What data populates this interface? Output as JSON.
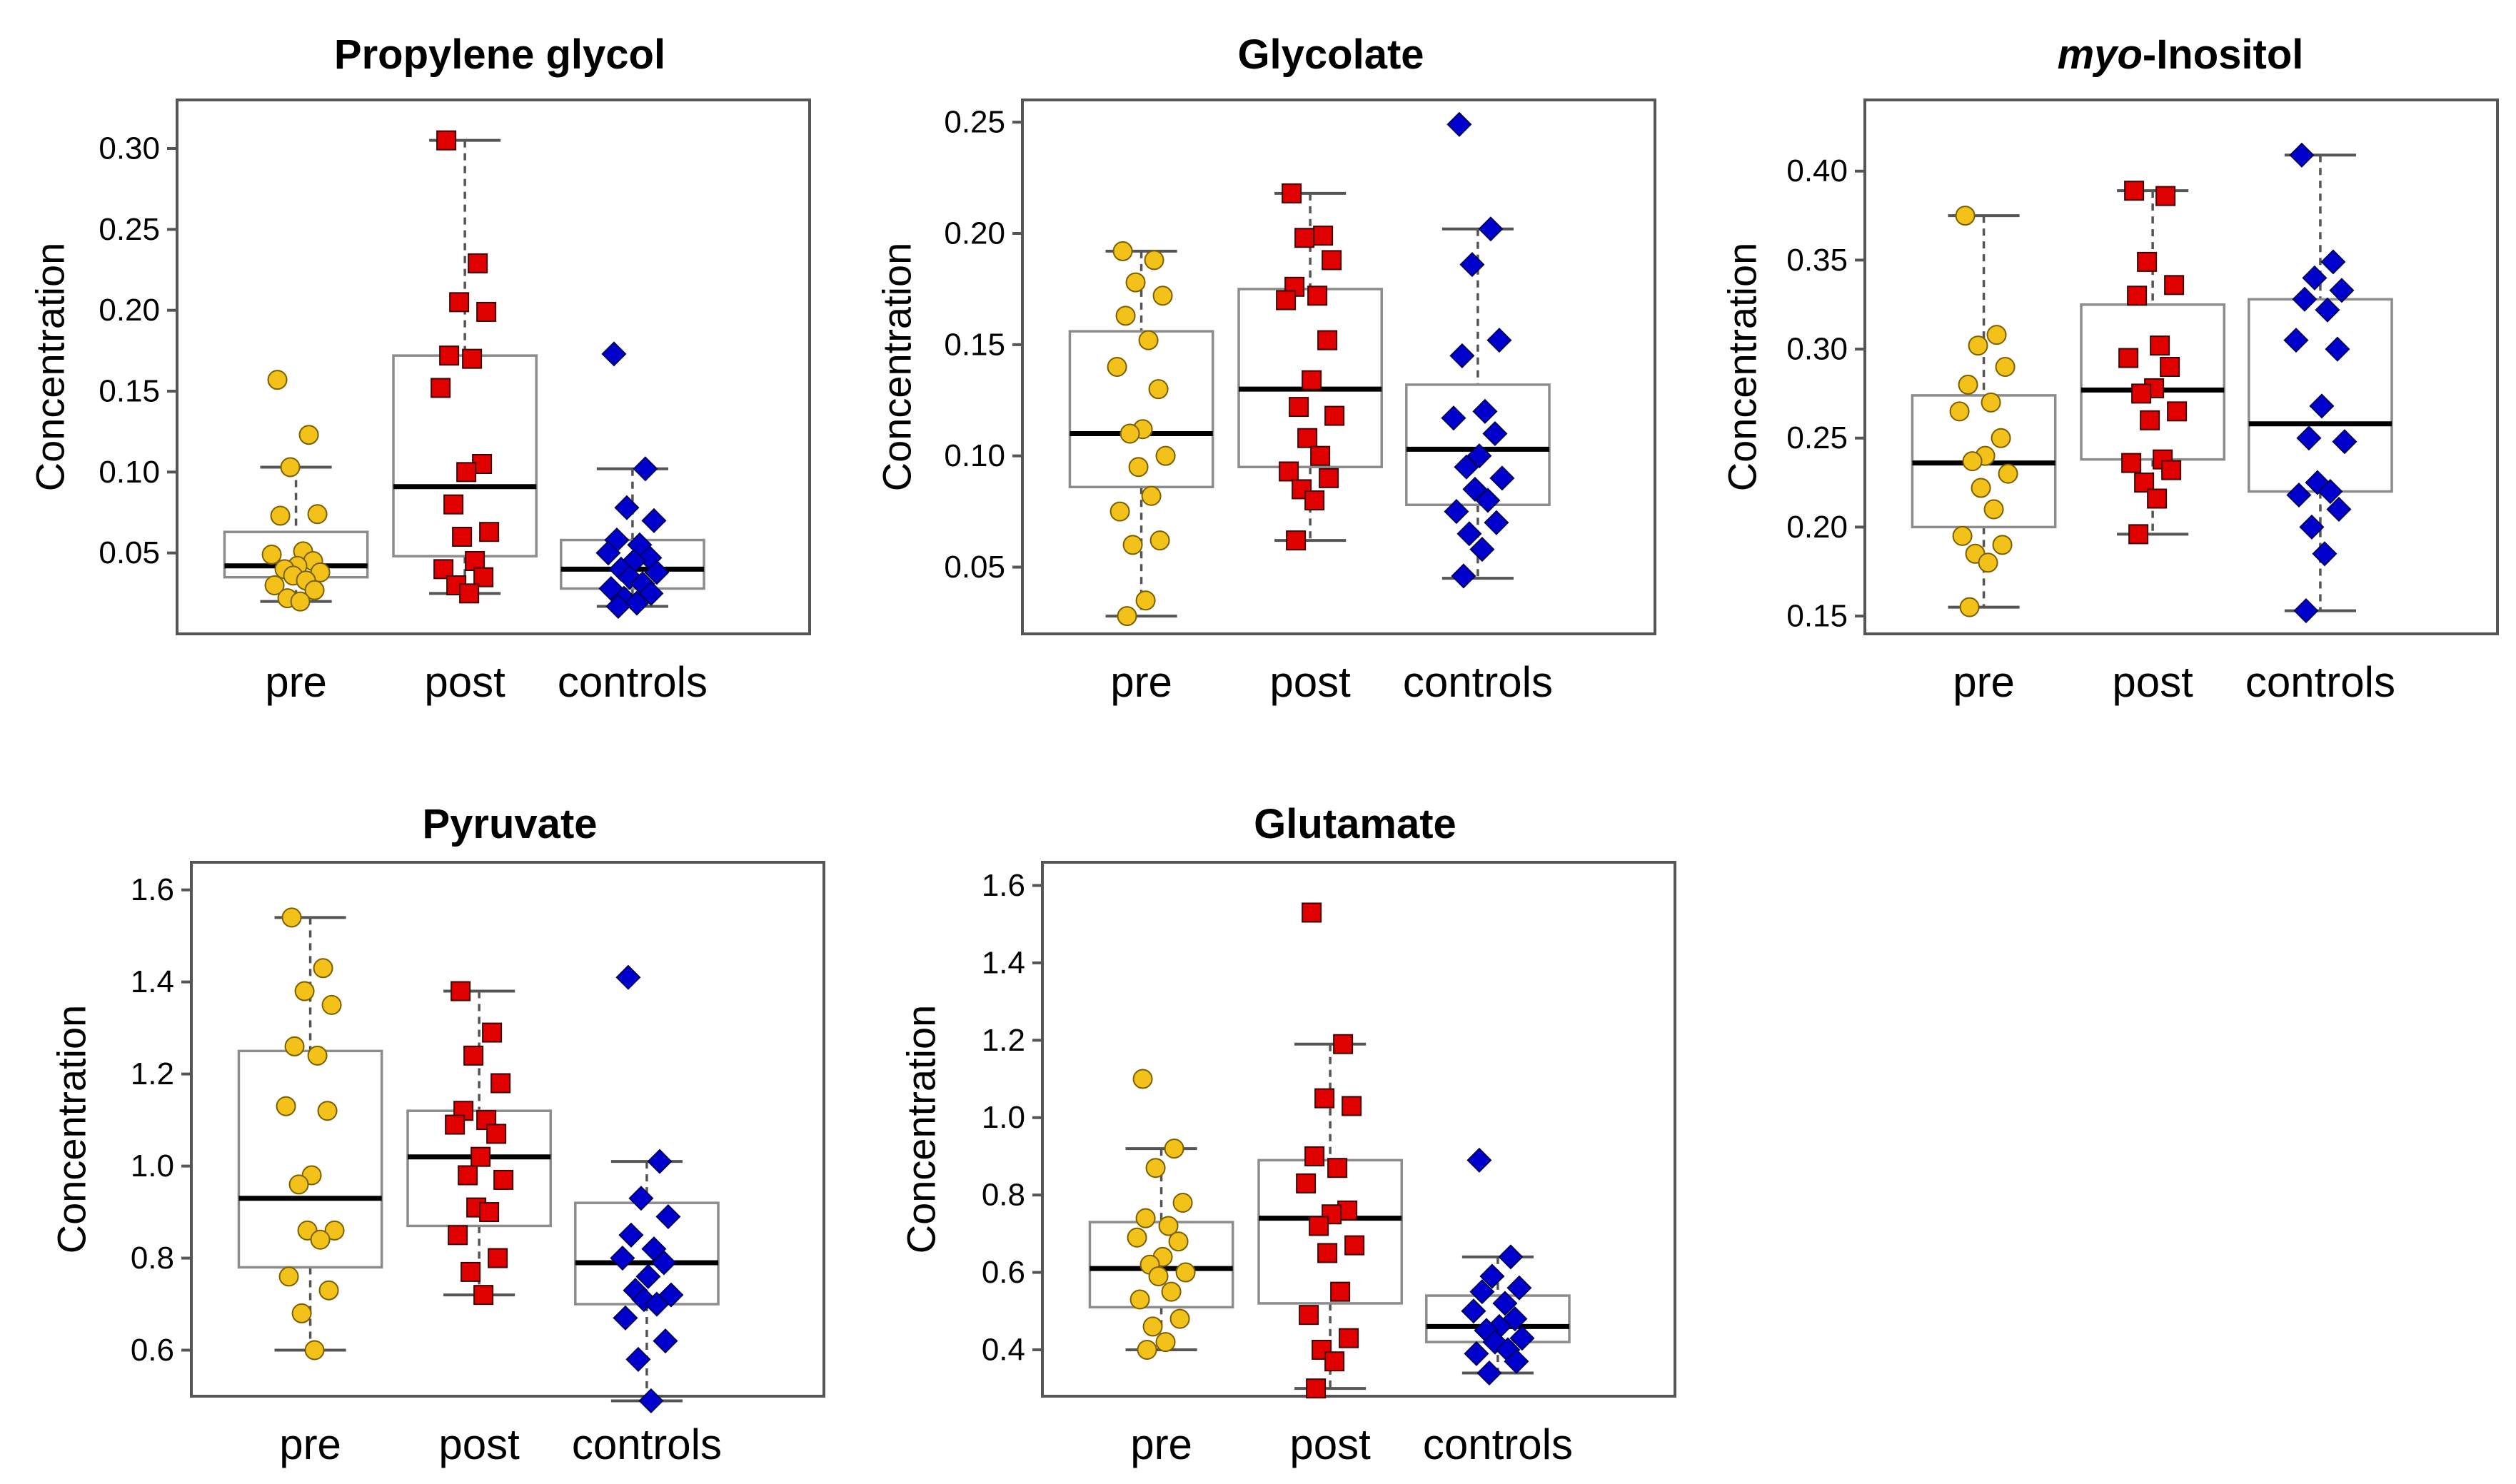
{
  "colors": {
    "pre": "#f2c21b",
    "post": "#e00000",
    "controls": "#0000cc"
  },
  "chart_data": [
    {
      "type": "box",
      "title": "Propylene glycol",
      "ylabel": "Concentration",
      "categories": [
        "pre",
        "post",
        "controls"
      ],
      "ylim": [
        0.0,
        0.33
      ],
      "yticks": [
        0.05,
        0.1,
        0.15,
        0.2,
        0.25,
        0.3
      ],
      "series": [
        {
          "box": {
            "whislo": 0.02,
            "q1": 0.035,
            "med": 0.042,
            "q3": 0.063,
            "whishi": 0.103
          },
          "points": [
            0.157,
            0.123,
            0.103,
            0.074,
            0.073,
            0.051,
            0.049,
            0.045,
            0.042,
            0.04,
            0.038,
            0.036,
            0.033,
            0.03,
            0.027,
            0.022,
            0.02
          ]
        },
        {
          "box": {
            "whislo": 0.025,
            "q1": 0.048,
            "med": 0.091,
            "q3": 0.172,
            "whishi": 0.305
          },
          "points": [
            0.305,
            0.229,
            0.205,
            0.199,
            0.172,
            0.17,
            0.152,
            0.105,
            0.1,
            0.08,
            0.063,
            0.06,
            0.045,
            0.04,
            0.035,
            0.03,
            0.025
          ]
        },
        {
          "box": {
            "whislo": 0.017,
            "q1": 0.028,
            "med": 0.04,
            "q3": 0.058,
            "whishi": 0.102
          },
          "points": [
            0.173,
            0.102,
            0.078,
            0.07,
            0.058,
            0.055,
            0.05,
            0.047,
            0.045,
            0.04,
            0.038,
            0.035,
            0.031,
            0.028,
            0.025,
            0.022,
            0.019,
            0.017
          ]
        }
      ]
    },
    {
      "type": "box",
      "title": "Glycolate",
      "ylabel": "Concentration",
      "categories": [
        "pre",
        "post",
        "controls"
      ],
      "ylim": [
        0.02,
        0.26
      ],
      "yticks": [
        0.05,
        0.1,
        0.15,
        0.2,
        0.25
      ],
      "series": [
        {
          "box": {
            "whislo": 0.028,
            "q1": 0.086,
            "med": 0.11,
            "q3": 0.156,
            "whishi": 0.192
          },
          "points": [
            0.192,
            0.188,
            0.178,
            0.172,
            0.163,
            0.152,
            0.14,
            0.13,
            0.112,
            0.11,
            0.1,
            0.095,
            0.082,
            0.075,
            0.062,
            0.06,
            0.035,
            0.028
          ]
        },
        {
          "box": {
            "whislo": 0.062,
            "q1": 0.095,
            "med": 0.13,
            "q3": 0.175,
            "whishi": 0.218
          },
          "points": [
            0.218,
            0.199,
            0.198,
            0.188,
            0.176,
            0.172,
            0.17,
            0.152,
            0.134,
            0.122,
            0.118,
            0.108,
            0.1,
            0.093,
            0.09,
            0.085,
            0.08,
            0.062
          ]
        },
        {
          "box": {
            "whislo": 0.045,
            "q1": 0.078,
            "med": 0.103,
            "q3": 0.132,
            "whishi": 0.202
          },
          "points": [
            0.249,
            0.202,
            0.186,
            0.152,
            0.145,
            0.12,
            0.117,
            0.11,
            0.1,
            0.095,
            0.09,
            0.085,
            0.08,
            0.075,
            0.07,
            0.065,
            0.058,
            0.046
          ]
        }
      ]
    },
    {
      "type": "box",
      "title": "Inositol",
      "title_prefix_italic": "myo",
      "title_rest": "-Inositol",
      "ylabel": "Concentration",
      "categories": [
        "pre",
        "post",
        "controls"
      ],
      "ylim": [
        0.14,
        0.44
      ],
      "yticks": [
        0.15,
        0.2,
        0.25,
        0.3,
        0.35,
        0.4
      ],
      "series": [
        {
          "box": {
            "whislo": 0.155,
            "q1": 0.2,
            "med": 0.236,
            "q3": 0.274,
            "whishi": 0.375
          },
          "points": [
            0.375,
            0.308,
            0.302,
            0.29,
            0.28,
            0.27,
            0.265,
            0.25,
            0.24,
            0.237,
            0.23,
            0.222,
            0.21,
            0.195,
            0.19,
            0.185,
            0.18,
            0.155
          ]
        },
        {
          "box": {
            "whislo": 0.196,
            "q1": 0.238,
            "med": 0.277,
            "q3": 0.325,
            "whishi": 0.389
          },
          "points": [
            0.389,
            0.386,
            0.349,
            0.336,
            0.33,
            0.302,
            0.295,
            0.29,
            0.278,
            0.275,
            0.265,
            0.26,
            0.238,
            0.236,
            0.232,
            0.225,
            0.216,
            0.196
          ]
        },
        {
          "box": {
            "whislo": 0.153,
            "q1": 0.22,
            "med": 0.258,
            "q3": 0.328,
            "whishi": 0.409
          },
          "points": [
            0.409,
            0.349,
            0.34,
            0.333,
            0.328,
            0.322,
            0.305,
            0.3,
            0.268,
            0.25,
            0.248,
            0.225,
            0.22,
            0.218,
            0.21,
            0.2,
            0.185,
            0.153
          ]
        }
      ]
    },
    {
      "type": "box",
      "title": "Pyruvate",
      "ylabel": "Concentration",
      "categories": [
        "pre",
        "post",
        "controls"
      ],
      "ylim": [
        0.5,
        1.66
      ],
      "yticks": [
        0.6,
        0.8,
        1.0,
        1.2,
        1.4,
        1.6
      ],
      "series": [
        {
          "box": {
            "whislo": 0.6,
            "q1": 0.78,
            "med": 0.93,
            "q3": 1.25,
            "whishi": 1.54
          },
          "points": [
            1.54,
            1.43,
            1.38,
            1.35,
            1.26,
            1.24,
            1.13,
            1.12,
            0.98,
            0.96,
            0.86,
            0.86,
            0.84,
            0.76,
            0.73,
            0.68,
            0.6
          ]
        },
        {
          "box": {
            "whislo": 0.72,
            "q1": 0.87,
            "med": 1.02,
            "q3": 1.12,
            "whishi": 1.38
          },
          "points": [
            1.38,
            1.29,
            1.24,
            1.18,
            1.12,
            1.1,
            1.09,
            1.07,
            1.02,
            0.98,
            0.97,
            0.91,
            0.9,
            0.85,
            0.8,
            0.77,
            0.72
          ]
        },
        {
          "box": {
            "whislo": 0.49,
            "q1": 0.7,
            "med": 0.79,
            "q3": 0.92,
            "whishi": 1.01
          },
          "points": [
            1.41,
            1.01,
            0.93,
            0.89,
            0.85,
            0.82,
            0.8,
            0.79,
            0.76,
            0.73,
            0.72,
            0.71,
            0.7,
            0.67,
            0.62,
            0.58,
            0.49
          ]
        }
      ]
    },
    {
      "type": "box",
      "title": "Glutamate",
      "ylabel": "Concentration",
      "categories": [
        "pre",
        "post",
        "controls"
      ],
      "ylim": [
        0.28,
        1.66
      ],
      "yticks": [
        0.4,
        0.6,
        0.8,
        1.0,
        1.2,
        1.4,
        1.6
      ],
      "series": [
        {
          "box": {
            "whislo": 0.4,
            "q1": 0.51,
            "med": 0.61,
            "q3": 0.73,
            "whishi": 0.92
          },
          "points": [
            1.1,
            0.92,
            0.87,
            0.78,
            0.74,
            0.72,
            0.69,
            0.68,
            0.64,
            0.62,
            0.6,
            0.59,
            0.55,
            0.53,
            0.48,
            0.46,
            0.42,
            0.4
          ]
        },
        {
          "box": {
            "whislo": 0.3,
            "q1": 0.52,
            "med": 0.74,
            "q3": 0.89,
            "whishi": 1.19
          },
          "points": [
            1.53,
            1.19,
            1.05,
            1.03,
            0.9,
            0.87,
            0.83,
            0.76,
            0.75,
            0.72,
            0.67,
            0.65,
            0.55,
            0.49,
            0.43,
            0.4,
            0.37,
            0.3
          ]
        },
        {
          "box": {
            "whislo": 0.34,
            "q1": 0.42,
            "med": 0.46,
            "q3": 0.54,
            "whishi": 0.64
          },
          "points": [
            0.89,
            0.64,
            0.59,
            0.56,
            0.55,
            0.52,
            0.5,
            0.48,
            0.46,
            0.45,
            0.43,
            0.42,
            0.4,
            0.39,
            0.37,
            0.34
          ]
        }
      ]
    }
  ]
}
